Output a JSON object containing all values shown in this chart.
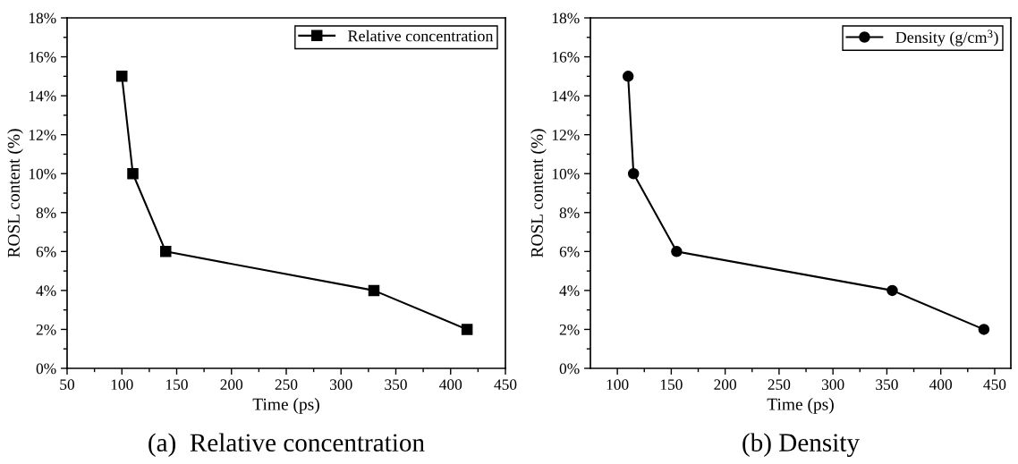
{
  "chart_data": [
    {
      "type": "line",
      "title": "(a)  Relative concentration",
      "xlabel": "Time (ps)",
      "ylabel": "ROSL content (%)",
      "series": [
        {
          "name": "Relative concentration",
          "color": "#000000",
          "x": [
            100,
            110,
            140,
            330,
            415
          ],
          "values": [
            15,
            10,
            6,
            4,
            2
          ]
        }
      ],
      "xlim": [
        50,
        450
      ],
      "xticks": [
        50,
        100,
        150,
        200,
        250,
        300,
        350,
        400,
        450
      ],
      "ylim": [
        0,
        18
      ],
      "yticks": [
        {
          "value": 0,
          "label": "0%"
        },
        {
          "value": 2,
          "label": "2%"
        },
        {
          "value": 4,
          "label": "4%"
        },
        {
          "value": 6,
          "label": "6%"
        },
        {
          "value": 8,
          "label": "8%"
        },
        {
          "value": 10,
          "label": "10%"
        },
        {
          "value": 12,
          "label": "12%"
        },
        {
          "value": 14,
          "label": "14%"
        },
        {
          "value": 16,
          "label": "16%"
        },
        {
          "value": 18,
          "label": "18%"
        }
      ],
      "marker": "square",
      "line_style": "solid",
      "legend": "top right",
      "grid": false
    },
    {
      "type": "line",
      "title": "(b) Density",
      "xlabel": "Time (ps)",
      "ylabel": "ROSL content (%)",
      "series": [
        {
          "name": "Density (g/cm$^{3}$)",
          "color": "#000000",
          "x": [
            110,
            115,
            155,
            355,
            440
          ],
          "values": [
            15,
            10,
            6,
            4,
            2
          ]
        }
      ],
      "xlim": [
        75,
        465
      ],
      "xticks": [
        100,
        150,
        200,
        250,
        300,
        350,
        400,
        450
      ],
      "ylim": [
        0,
        18
      ],
      "yticks": [
        {
          "value": 0,
          "label": "0%"
        },
        {
          "value": 2,
          "label": "2%"
        },
        {
          "value": 4,
          "label": "4%"
        },
        {
          "value": 6,
          "label": "6%"
        },
        {
          "value": 8,
          "label": "8%"
        },
        {
          "value": 10,
          "label": "10%"
        },
        {
          "value": 12,
          "label": "12%"
        },
        {
          "value": 14,
          "label": "14%"
        },
        {
          "value": 16,
          "label": "16%"
        },
        {
          "value": 18,
          "label": "18%"
        }
      ],
      "marker": "circle",
      "line_style": "solid",
      "legend": "top right",
      "grid": false
    }
  ]
}
